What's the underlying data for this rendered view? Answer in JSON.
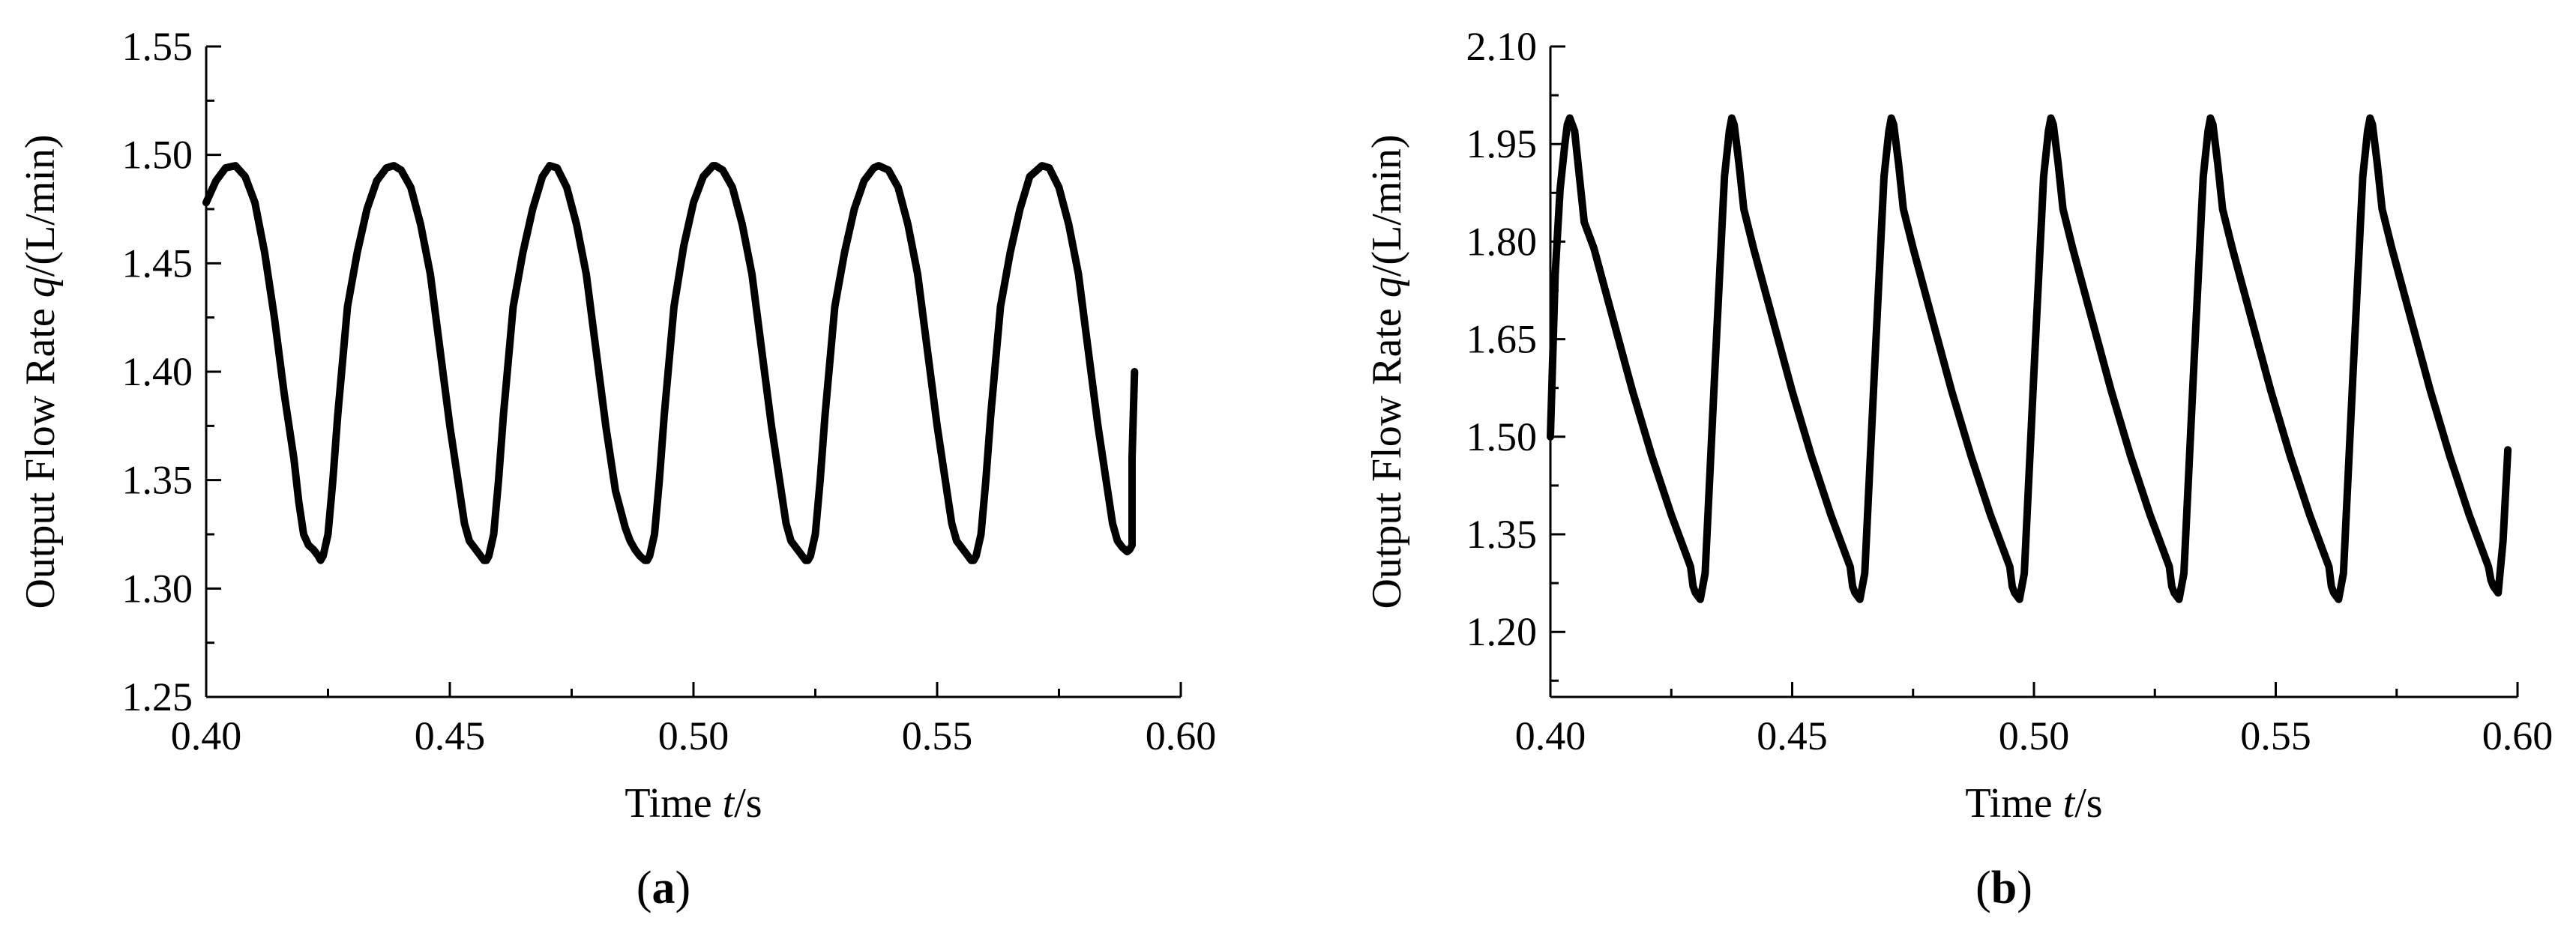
{
  "chart_data": [
    {
      "type": "line",
      "panel_label": "a",
      "title": "",
      "xlabel": {
        "prefix": "Time ",
        "var": "t",
        "suffix": "/s"
      },
      "ylabel": {
        "prefix": "Output Flow Rate ",
        "var": "q",
        "suffix": "/(L/min)"
      },
      "xlim": [
        0.4,
        0.6
      ],
      "ylim": [
        1.25,
        1.55
      ],
      "xticks": [
        "0.40",
        "0.45",
        "0.50",
        "0.55",
        "0.60"
      ],
      "yticks": [
        "1.25",
        "1.30",
        "1.35",
        "1.40",
        "1.45",
        "1.50",
        "1.55"
      ],
      "grid": false,
      "series": [
        {
          "x": [
            0.4,
            0.402,
            0.404,
            0.406,
            0.408,
            0.41,
            0.412,
            0.414,
            0.416,
            0.418,
            0.419,
            0.42,
            0.421,
            0.422,
            0.423,
            0.4235,
            0.424,
            0.425,
            0.426,
            0.427,
            0.429,
            0.431,
            0.433,
            0.435,
            0.437,
            0.4385,
            0.44,
            0.442,
            0.444,
            0.446,
            0.448,
            0.45,
            0.452,
            0.453,
            0.454,
            0.455,
            0.456,
            0.457,
            0.4575,
            0.458,
            0.459,
            0.46,
            0.461,
            0.463,
            0.465,
            0.467,
            0.469,
            0.4705,
            0.472,
            0.474,
            0.476,
            0.478,
            0.48,
            0.482,
            0.484,
            0.486,
            0.487,
            0.488,
            0.489,
            0.49,
            0.4905,
            0.491,
            0.492,
            0.493,
            0.494,
            0.496,
            0.498,
            0.5,
            0.502,
            0.504,
            0.5045,
            0.506,
            0.508,
            0.51,
            0.512,
            0.514,
            0.516,
            0.518,
            0.519,
            0.52,
            0.521,
            0.522,
            0.523,
            0.5235,
            0.524,
            0.525,
            0.526,
            0.527,
            0.529,
            0.531,
            0.533,
            0.535,
            0.537,
            0.538,
            0.54,
            0.542,
            0.544,
            0.546,
            0.548,
            0.55,
            0.552,
            0.553,
            0.554,
            0.555,
            0.556,
            0.557,
            0.5575,
            0.558,
            0.559,
            0.56,
            0.561,
            0.563,
            0.565,
            0.567,
            0.569,
            0.5715,
            0.573,
            0.575,
            0.577,
            0.579,
            0.581,
            0.583,
            0.585,
            0.586,
            0.587,
            0.588,
            0.589,
            0.5895,
            0.59,
            0.59,
            0.5905
          ],
          "y": [
            1.478,
            1.488,
            1.494,
            1.495,
            1.49,
            1.478,
            1.455,
            1.425,
            1.39,
            1.36,
            1.34,
            1.325,
            1.32,
            1.318,
            1.315,
            1.313,
            1.315,
            1.325,
            1.35,
            1.38,
            1.43,
            1.455,
            1.475,
            1.488,
            1.494,
            1.495,
            1.493,
            1.485,
            1.468,
            1.445,
            1.41,
            1.375,
            1.345,
            1.33,
            1.322,
            1.319,
            1.316,
            1.313,
            1.313,
            1.315,
            1.325,
            1.35,
            1.38,
            1.43,
            1.455,
            1.475,
            1.49,
            1.495,
            1.494,
            1.485,
            1.468,
            1.445,
            1.41,
            1.375,
            1.345,
            1.328,
            1.322,
            1.318,
            1.315,
            1.313,
            1.313,
            1.315,
            1.325,
            1.35,
            1.38,
            1.43,
            1.458,
            1.478,
            1.49,
            1.495,
            1.495,
            1.493,
            1.485,
            1.468,
            1.445,
            1.41,
            1.375,
            1.345,
            1.33,
            1.322,
            1.319,
            1.316,
            1.313,
            1.313,
            1.315,
            1.325,
            1.35,
            1.38,
            1.43,
            1.455,
            1.475,
            1.488,
            1.494,
            1.495,
            1.493,
            1.485,
            1.468,
            1.445,
            1.41,
            1.375,
            1.345,
            1.33,
            1.322,
            1.319,
            1.316,
            1.313,
            1.313,
            1.315,
            1.325,
            1.35,
            1.38,
            1.43,
            1.455,
            1.475,
            1.49,
            1.495,
            1.494,
            1.485,
            1.468,
            1.445,
            1.41,
            1.375,
            1.345,
            1.33,
            1.322,
            1.319,
            1.317,
            1.318,
            1.32,
            1.36,
            1.4
          ]
        }
      ]
    },
    {
      "type": "line",
      "panel_label": "b",
      "title": "",
      "xlabel": {
        "prefix": "Time ",
        "var": "t",
        "suffix": "/s"
      },
      "ylabel": {
        "prefix": "Output Flow Rate ",
        "var": "q",
        "suffix": "/(L/min)"
      },
      "xlim": [
        0.4,
        0.6
      ],
      "ylim": [
        1.1,
        2.1
      ],
      "xticks": [
        "0.40",
        "0.45",
        "0.50",
        "0.55",
        "0.60"
      ],
      "yticks": [
        "1.20",
        "1.35",
        "1.50",
        "1.65",
        "1.80",
        "1.95",
        "2.10"
      ],
      "grid": false,
      "series": [
        {
          "x": [
            0.4,
            0.401,
            0.402,
            0.403,
            0.4035,
            0.404,
            0.405,
            0.406,
            0.407,
            0.409,
            0.413,
            0.417,
            0.421,
            0.425,
            0.428,
            0.429,
            0.4295,
            0.43,
            0.431,
            0.432,
            0.434,
            0.436,
            0.437,
            0.4375,
            0.438,
            0.439,
            0.44,
            0.442,
            0.446,
            0.45,
            0.454,
            0.458,
            0.461,
            0.462,
            0.4625,
            0.463,
            0.464,
            0.465,
            0.467,
            0.469,
            0.47,
            0.4705,
            0.471,
            0.472,
            0.473,
            0.475,
            0.479,
            0.483,
            0.487,
            0.491,
            0.494,
            0.495,
            0.4955,
            0.496,
            0.497,
            0.498,
            0.5,
            0.502,
            0.503,
            0.5035,
            0.504,
            0.505,
            0.506,
            0.508,
            0.512,
            0.516,
            0.52,
            0.524,
            0.527,
            0.528,
            0.5285,
            0.529,
            0.53,
            0.531,
            0.533,
            0.535,
            0.536,
            0.5365,
            0.537,
            0.538,
            0.539,
            0.541,
            0.545,
            0.549,
            0.553,
            0.557,
            0.56,
            0.561,
            0.5615,
            0.562,
            0.563,
            0.564,
            0.566,
            0.568,
            0.569,
            0.5695,
            0.57,
            0.571,
            0.572,
            0.574,
            0.578,
            0.582,
            0.586,
            0.59,
            0.593,
            0.594,
            0.5945,
            0.595,
            0.596,
            0.597,
            0.598
          ],
          "y": [
            1.5,
            1.75,
            1.88,
            1.95,
            1.98,
            1.99,
            1.97,
            1.9,
            1.83,
            1.79,
            1.68,
            1.57,
            1.47,
            1.38,
            1.32,
            1.3,
            1.27,
            1.26,
            1.25,
            1.29,
            1.6,
            1.9,
            1.97,
            1.99,
            1.98,
            1.92,
            1.85,
            1.79,
            1.68,
            1.57,
            1.47,
            1.38,
            1.32,
            1.3,
            1.27,
            1.26,
            1.25,
            1.29,
            1.6,
            1.9,
            1.97,
            1.99,
            1.98,
            1.92,
            1.85,
            1.79,
            1.68,
            1.57,
            1.47,
            1.38,
            1.32,
            1.3,
            1.27,
            1.26,
            1.25,
            1.29,
            1.6,
            1.9,
            1.97,
            1.99,
            1.98,
            1.92,
            1.85,
            1.79,
            1.68,
            1.57,
            1.47,
            1.38,
            1.32,
            1.3,
            1.27,
            1.26,
            1.25,
            1.29,
            1.6,
            1.9,
            1.97,
            1.99,
            1.98,
            1.92,
            1.85,
            1.79,
            1.68,
            1.57,
            1.47,
            1.38,
            1.32,
            1.3,
            1.27,
            1.26,
            1.25,
            1.29,
            1.6,
            1.9,
            1.97,
            1.99,
            1.98,
            1.92,
            1.85,
            1.79,
            1.68,
            1.57,
            1.47,
            1.38,
            1.32,
            1.3,
            1.28,
            1.27,
            1.26,
            1.34,
            1.48
          ]
        }
      ]
    }
  ]
}
